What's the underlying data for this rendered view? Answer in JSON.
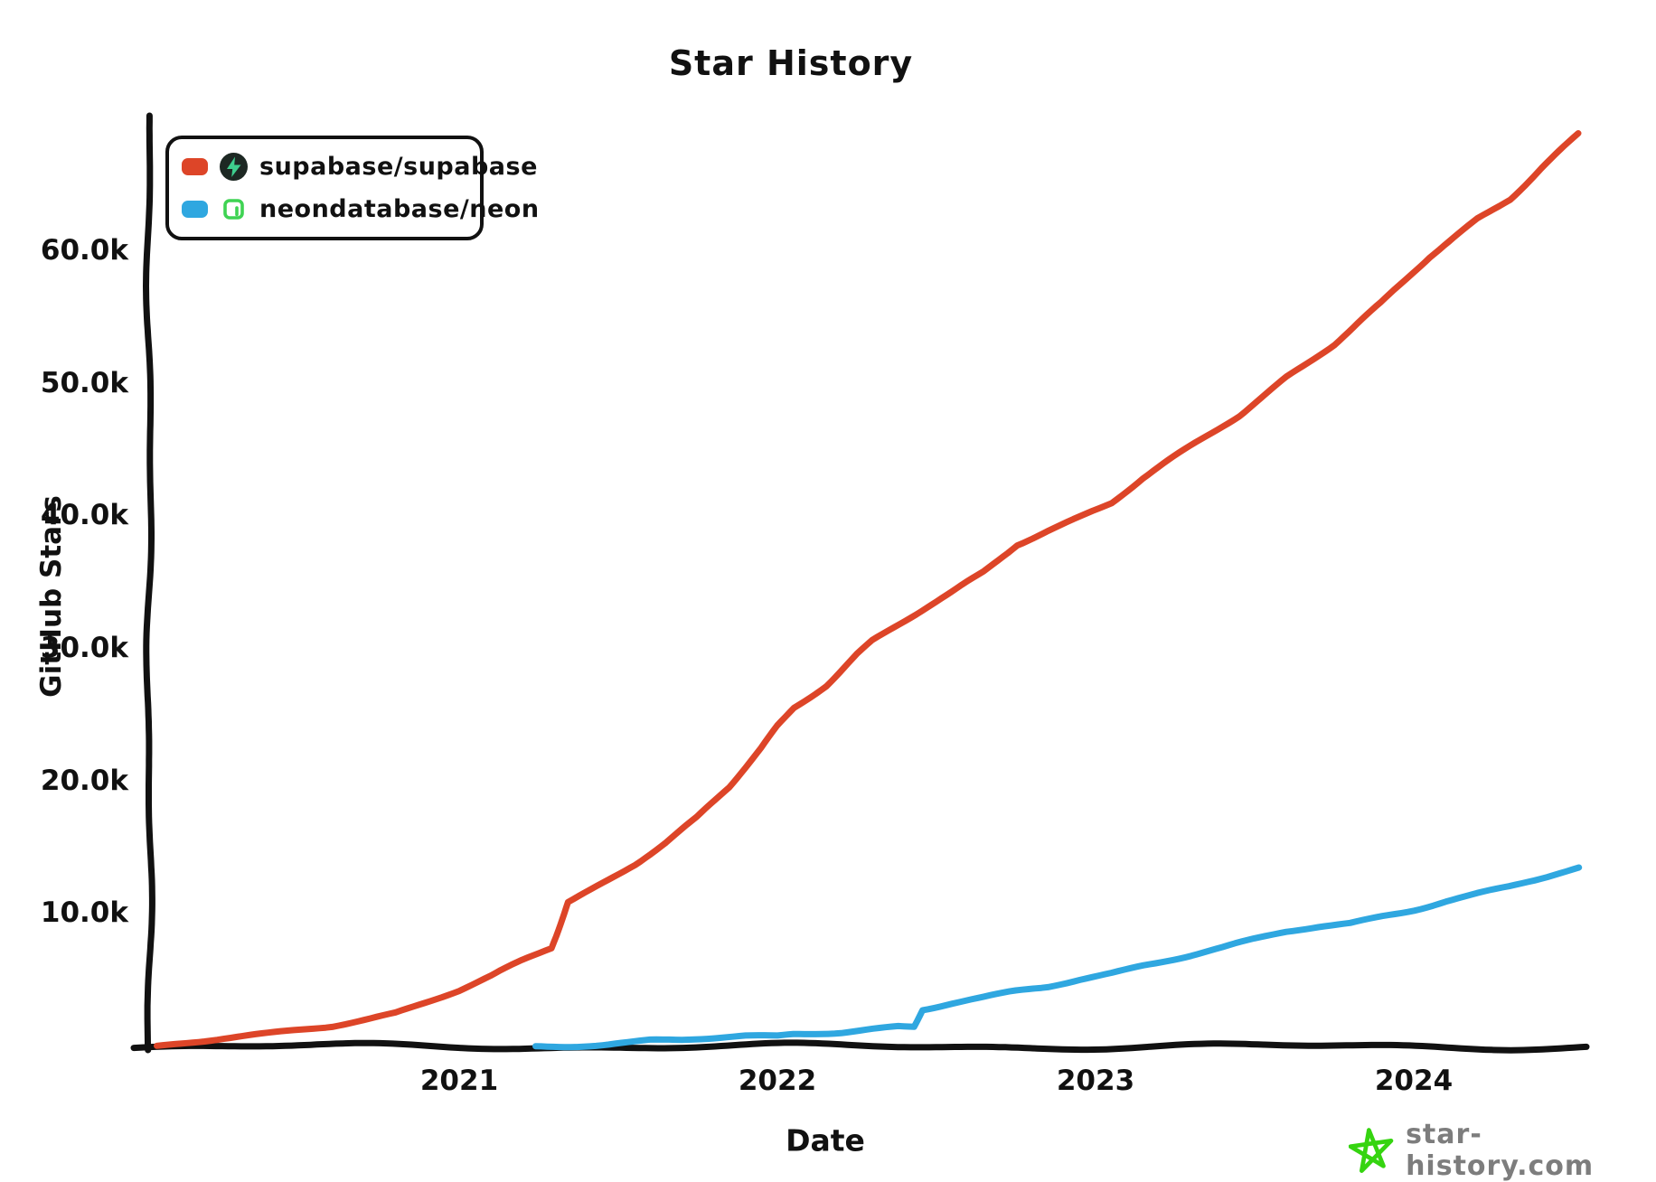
{
  "title": "Star History",
  "y_axis_label": "GitHub Stars",
  "x_axis_label": "Date",
  "legend": {
    "items": [
      {
        "repo": "supabase/supabase",
        "swatch_color": "#dd4528",
        "icon": "supabase-logo",
        "icon_bg": "#1d2823",
        "icon_fg": "#3ecf8e"
      },
      {
        "repo": "neondatabase/neon",
        "swatch_color": "#2fa7e0",
        "icon": "neon-logo",
        "icon_bg": "#ffffff",
        "icon_fg": "#3fd353"
      }
    ]
  },
  "watermark": {
    "text": "star-history.com",
    "star_color": "#35d410",
    "text_color": "#7d7d7d"
  },
  "colors": {
    "axis": "#111111",
    "background": "#ffffff"
  },
  "chart_data": {
    "type": "line",
    "title": "Star History",
    "xlabel": "Date",
    "ylabel": "GitHub Stars",
    "x_unit": "decimal_year",
    "xlim": [
      2020.03,
      2024.55
    ],
    "ylim": [
      0,
      70000
    ],
    "grid": false,
    "legend_position": "top-left",
    "x_ticks": [
      {
        "value": 2021,
        "label": "2021"
      },
      {
        "value": 2022,
        "label": "2022"
      },
      {
        "value": 2023,
        "label": "2023"
      },
      {
        "value": 2024,
        "label": "2024"
      }
    ],
    "y_ticks": [
      {
        "value": 10000,
        "label": "10.0k"
      },
      {
        "value": 20000,
        "label": "20.0k"
      },
      {
        "value": 30000,
        "label": "30.0k"
      },
      {
        "value": 40000,
        "label": "40.0k"
      },
      {
        "value": 50000,
        "label": "50.0k"
      },
      {
        "value": 60000,
        "label": "60.0k"
      }
    ],
    "series": [
      {
        "name": "supabase/supabase",
        "color": "#dd4528",
        "points": [
          [
            2020.05,
            0
          ],
          [
            2020.2,
            350
          ],
          [
            2020.4,
            900
          ],
          [
            2020.6,
            1600
          ],
          [
            2020.8,
            2600
          ],
          [
            2021.0,
            4200
          ],
          [
            2021.1,
            5200
          ],
          [
            2021.2,
            6400
          ],
          [
            2021.29,
            7400
          ],
          [
            2021.31,
            8800
          ],
          [
            2021.34,
            10900
          ],
          [
            2021.45,
            12400
          ],
          [
            2021.55,
            13800
          ],
          [
            2021.65,
            15400
          ],
          [
            2021.75,
            17200
          ],
          [
            2021.85,
            19500
          ],
          [
            2021.95,
            22500
          ],
          [
            2022.0,
            24200
          ],
          [
            2022.05,
            25600
          ],
          [
            2022.15,
            27300
          ],
          [
            2022.25,
            29600
          ],
          [
            2022.3,
            30600
          ],
          [
            2022.42,
            32300
          ],
          [
            2022.55,
            34200
          ],
          [
            2022.65,
            35800
          ],
          [
            2022.75,
            37900
          ],
          [
            2022.85,
            39000
          ],
          [
            2022.95,
            40000
          ],
          [
            2023.05,
            41000
          ],
          [
            2023.15,
            42800
          ],
          [
            2023.3,
            45200
          ],
          [
            2023.45,
            47600
          ],
          [
            2023.6,
            50600
          ],
          [
            2023.75,
            53000
          ],
          [
            2023.9,
            56000
          ],
          [
            2024.05,
            59500
          ],
          [
            2024.2,
            62500
          ],
          [
            2024.3,
            64000
          ],
          [
            2024.4,
            66300
          ],
          [
            2024.52,
            68800
          ]
        ]
      },
      {
        "name": "neondatabase/neon",
        "color": "#2fa7e0",
        "points": [
          [
            2021.24,
            50
          ],
          [
            2021.35,
            120
          ],
          [
            2021.45,
            200
          ],
          [
            2021.55,
            350
          ],
          [
            2021.6,
            450
          ],
          [
            2021.7,
            450
          ],
          [
            2021.8,
            550
          ],
          [
            2021.9,
            700
          ],
          [
            2022.0,
            750
          ],
          [
            2022.05,
            950
          ],
          [
            2022.12,
            1050
          ],
          [
            2022.2,
            1150
          ],
          [
            2022.3,
            1400
          ],
          [
            2022.38,
            1550
          ],
          [
            2022.43,
            1500
          ],
          [
            2022.455,
            2750
          ],
          [
            2022.55,
            3200
          ],
          [
            2022.65,
            3600
          ],
          [
            2022.75,
            4100
          ],
          [
            2022.85,
            4500
          ],
          [
            2022.95,
            5100
          ],
          [
            2023.05,
            5600
          ],
          [
            2023.15,
            6200
          ],
          [
            2023.3,
            6900
          ],
          [
            2023.4,
            7400
          ],
          [
            2023.5,
            8000
          ],
          [
            2023.6,
            8600
          ],
          [
            2023.7,
            9000
          ],
          [
            2023.8,
            9300
          ],
          [
            2023.9,
            9900
          ],
          [
            2024.0,
            10400
          ],
          [
            2024.1,
            11000
          ],
          [
            2024.2,
            11500
          ],
          [
            2024.3,
            12000
          ],
          [
            2024.4,
            12600
          ],
          [
            2024.52,
            13400
          ]
        ]
      }
    ]
  }
}
